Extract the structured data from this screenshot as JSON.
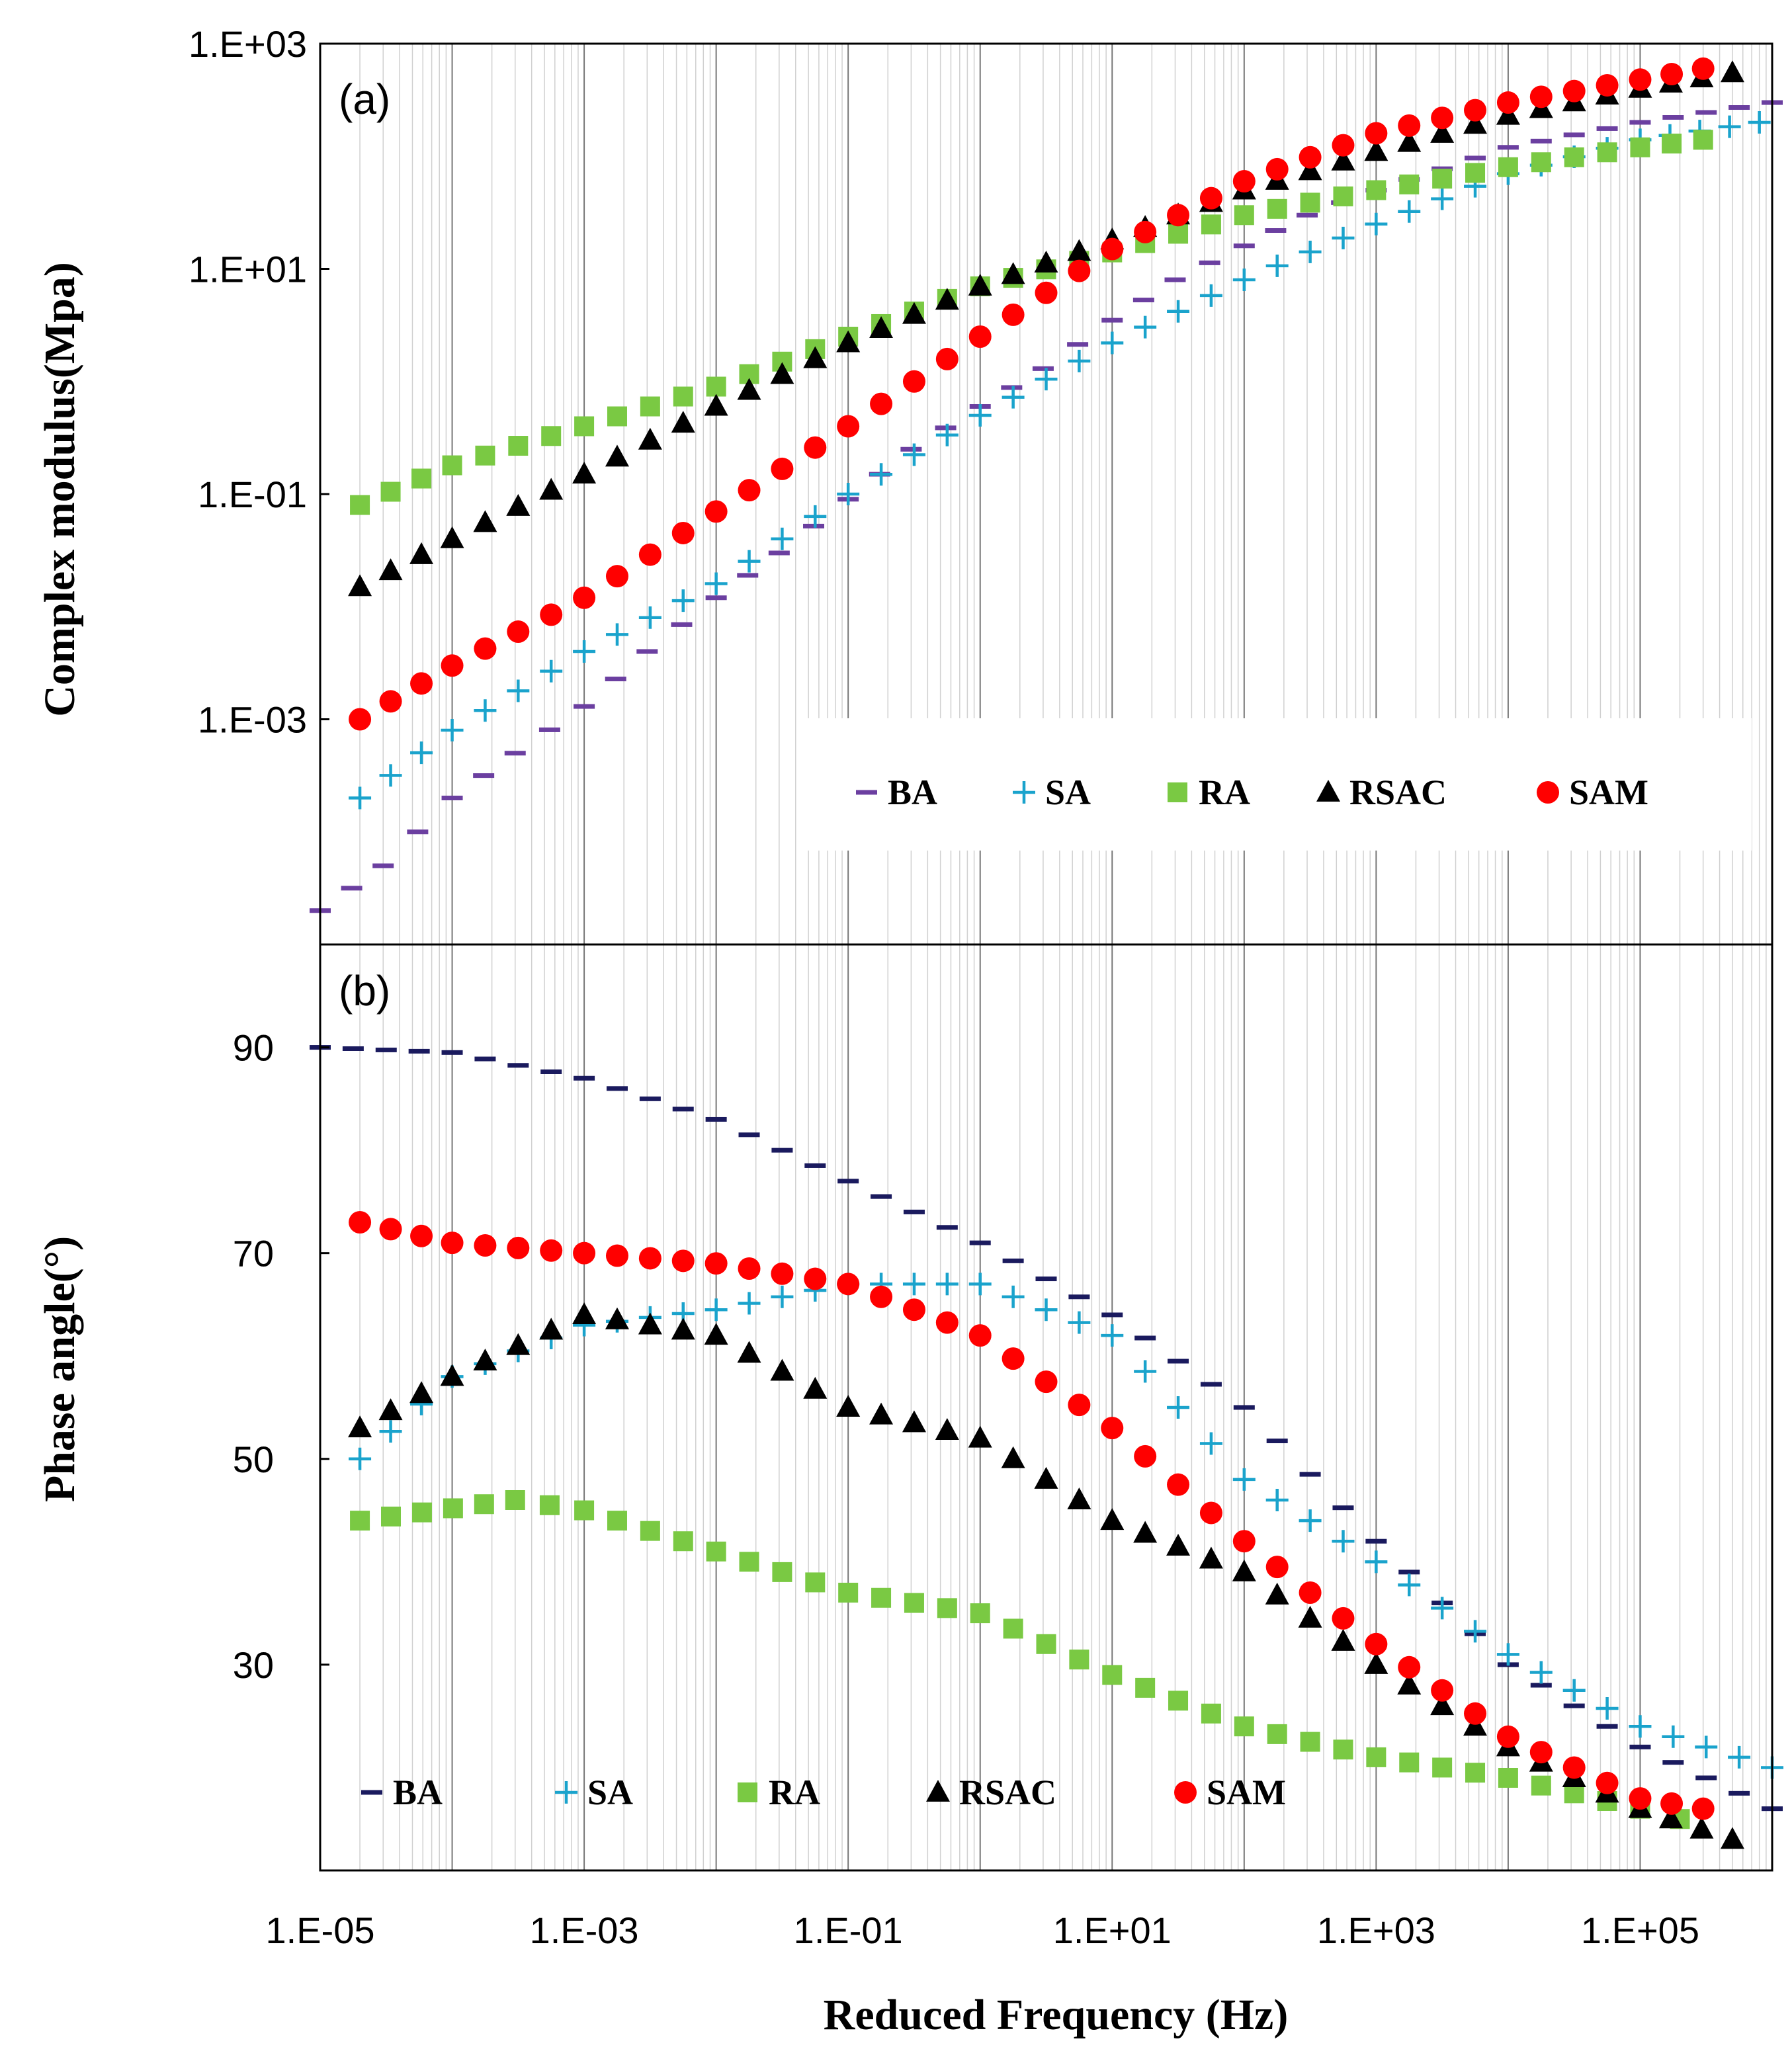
{
  "colors": {
    "BA": "#6b3fa0",
    "BA_b": "#1a1a5e",
    "SA": "#1aa3cc",
    "RA": "#7ac943",
    "RSAC": "#000000",
    "SAM": "#ff0000"
  },
  "markers": {
    "BA": "dash",
    "SA": "plus",
    "RA": "square",
    "RSAC": "triangle",
    "SAM": "circle"
  },
  "chart_data": [
    {
      "type": "scatter",
      "panel": "(a)",
      "xlabel": "Reduced Frequency (Hz)",
      "ylabel": "Complex modulus(Mpa)",
      "xscale": "log",
      "yscale": "log",
      "xlim": [
        1e-05,
        1000000.0
      ],
      "ylim": [
        1e-05,
        1000.0
      ],
      "xticks": [
        "1.E-05",
        "1.E-03",
        "1.E-01",
        "1.E+01",
        "1.E+03",
        "1.E+05"
      ],
      "yticks": [
        "1.E-03",
        "1.E-01",
        "1.E+01",
        "1.E+03"
      ],
      "grid": "vertical",
      "legend": "bottom-right",
      "series": [
        {
          "name": "BA",
          "marker": "dash",
          "points": [
            [
              1e-05,
              2e-05
            ],
            [
              3e-05,
              5e-05
            ],
            [
              0.0001,
              0.0002
            ],
            [
              0.0003,
              0.0005
            ],
            [
              0.001,
              0.0013
            ],
            [
              0.003,
              0.004
            ],
            [
              0.01,
              0.012
            ],
            [
              0.03,
              0.03
            ],
            [
              0.1,
              0.09
            ],
            [
              0.3,
              0.25
            ],
            [
              1,
              0.6
            ],
            [
              3,
              1.3
            ],
            [
              10,
              3.5
            ],
            [
              30,
              8
            ],
            [
              100,
              16
            ],
            [
              300,
              30
            ],
            [
              1000,
              50
            ],
            [
              10000,
              120
            ],
            [
              100000,
              200
            ],
            [
              1000000,
              300
            ]
          ]
        },
        {
          "name": "SA",
          "marker": "plus",
          "points": [
            [
              2e-05,
              0.0002
            ],
            [
              0.0001,
              0.0008
            ],
            [
              0.001,
              0.004
            ],
            [
              0.01,
              0.016
            ],
            [
              0.1,
              0.1
            ],
            [
              1,
              0.5
            ],
            [
              10,
              2.2
            ],
            [
              100,
              8
            ],
            [
              1000,
              25
            ],
            [
              10000,
              70
            ],
            [
              100000,
              140
            ],
            [
              800000,
              200
            ]
          ]
        },
        {
          "name": "RA",
          "marker": "square",
          "points": [
            [
              2e-05,
              0.08
            ],
            [
              0.0001,
              0.18
            ],
            [
              0.001,
              0.4
            ],
            [
              0.01,
              0.9
            ],
            [
              0.1,
              2.5
            ],
            [
              1,
              7
            ],
            [
              10,
              14
            ],
            [
              100,
              30
            ],
            [
              1000,
              50
            ],
            [
              10000,
              80
            ],
            [
              100000,
              120
            ],
            [
              300000,
              140
            ]
          ]
        },
        {
          "name": "RSAC",
          "marker": "triangle",
          "points": [
            [
              2e-05,
              0.015
            ],
            [
              0.0001,
              0.04
            ],
            [
              0.001,
              0.15
            ],
            [
              0.01,
              0.6
            ],
            [
              0.1,
              2.2
            ],
            [
              1,
              7
            ],
            [
              10,
              18
            ],
            [
              100,
              50
            ],
            [
              1000,
              110
            ],
            [
              10000,
              230
            ],
            [
              100000,
              400
            ],
            [
              500000,
              550
            ]
          ]
        },
        {
          "name": "SAM",
          "marker": "circle",
          "points": [
            [
              2e-05,
              0.001
            ],
            [
              0.0001,
              0.003
            ],
            [
              0.001,
              0.012
            ],
            [
              0.01,
              0.07
            ],
            [
              0.1,
              0.4
            ],
            [
              1,
              2.5
            ],
            [
              10,
              15
            ],
            [
              100,
              60
            ],
            [
              1000,
              160
            ],
            [
              10000,
              300
            ],
            [
              100000,
              480
            ],
            [
              300000,
              600
            ]
          ]
        }
      ]
    },
    {
      "type": "scatter",
      "panel": "(b)",
      "xlabel": "Reduced Frequency (Hz)",
      "ylabel": "Phase angle(°)",
      "xscale": "log",
      "yscale": "linear",
      "xlim": [
        1e-05,
        1000000.0
      ],
      "ylim": [
        10,
        100
      ],
      "xticks": [
        "1.E-05",
        "1.E-03",
        "1.E-01",
        "1.E+01",
        "1.E+03",
        "1.E+05"
      ],
      "yticks": [
        "30",
        "50",
        "70",
        "90"
      ],
      "grid": "vertical",
      "legend": "bottom",
      "series": [
        {
          "name": "BA",
          "marker": "dash",
          "points": [
            [
              1e-05,
              90
            ],
            [
              0.0001,
              89.5
            ],
            [
              0.001,
              87
            ],
            [
              0.01,
              83
            ],
            [
              0.1,
              77
            ],
            [
              1,
              71
            ],
            [
              10,
              64
            ],
            [
              100,
              55
            ],
            [
              1000,
              42
            ],
            [
              10000,
              30
            ],
            [
              100000,
              22
            ],
            [
              1000000,
              16
            ]
          ]
        },
        {
          "name": "SA",
          "marker": "plus",
          "points": [
            [
              2e-05,
              50
            ],
            [
              0.0001,
              58
            ],
            [
              0.001,
              63
            ],
            [
              0.01,
              64.5
            ],
            [
              0.1,
              67
            ],
            [
              1,
              67
            ],
            [
              10,
              62
            ],
            [
              100,
              48
            ],
            [
              1000,
              40
            ],
            [
              10000,
              31
            ],
            [
              100000,
              24
            ],
            [
              1000000,
              20
            ]
          ]
        },
        {
          "name": "RA",
          "marker": "square",
          "points": [
            [
              2e-05,
              44
            ],
            [
              0.0003,
              46
            ],
            [
              0.001,
              45
            ],
            [
              0.01,
              41
            ],
            [
              0.1,
              37
            ],
            [
              1,
              35
            ],
            [
              10,
              29
            ],
            [
              100,
              24
            ],
            [
              1000,
              21
            ],
            [
              10000,
              19
            ],
            [
              100000,
              16
            ],
            [
              200000,
              15
            ]
          ]
        },
        {
          "name": "RSAC",
          "marker": "triangle",
          "points": [
            [
              2e-05,
              53
            ],
            [
              0.0001,
              58
            ],
            [
              0.001,
              64
            ],
            [
              0.01,
              62
            ],
            [
              0.1,
              55
            ],
            [
              1,
              52
            ],
            [
              10,
              44
            ],
            [
              100,
              39
            ],
            [
              1000,
              30
            ],
            [
              10000,
              22
            ],
            [
              100000,
              16
            ],
            [
              500000,
              13
            ]
          ]
        },
        {
          "name": "SAM",
          "marker": "circle",
          "points": [
            [
              2e-05,
              73
            ],
            [
              0.0001,
              71
            ],
            [
              0.001,
              70
            ],
            [
              0.01,
              69
            ],
            [
              0.1,
              67
            ],
            [
              1,
              62
            ],
            [
              10,
              53
            ],
            [
              100,
              42
            ],
            [
              1000,
              32
            ],
            [
              10000,
              23
            ],
            [
              100000,
              17
            ],
            [
              300000,
              16
            ]
          ]
        }
      ]
    }
  ]
}
